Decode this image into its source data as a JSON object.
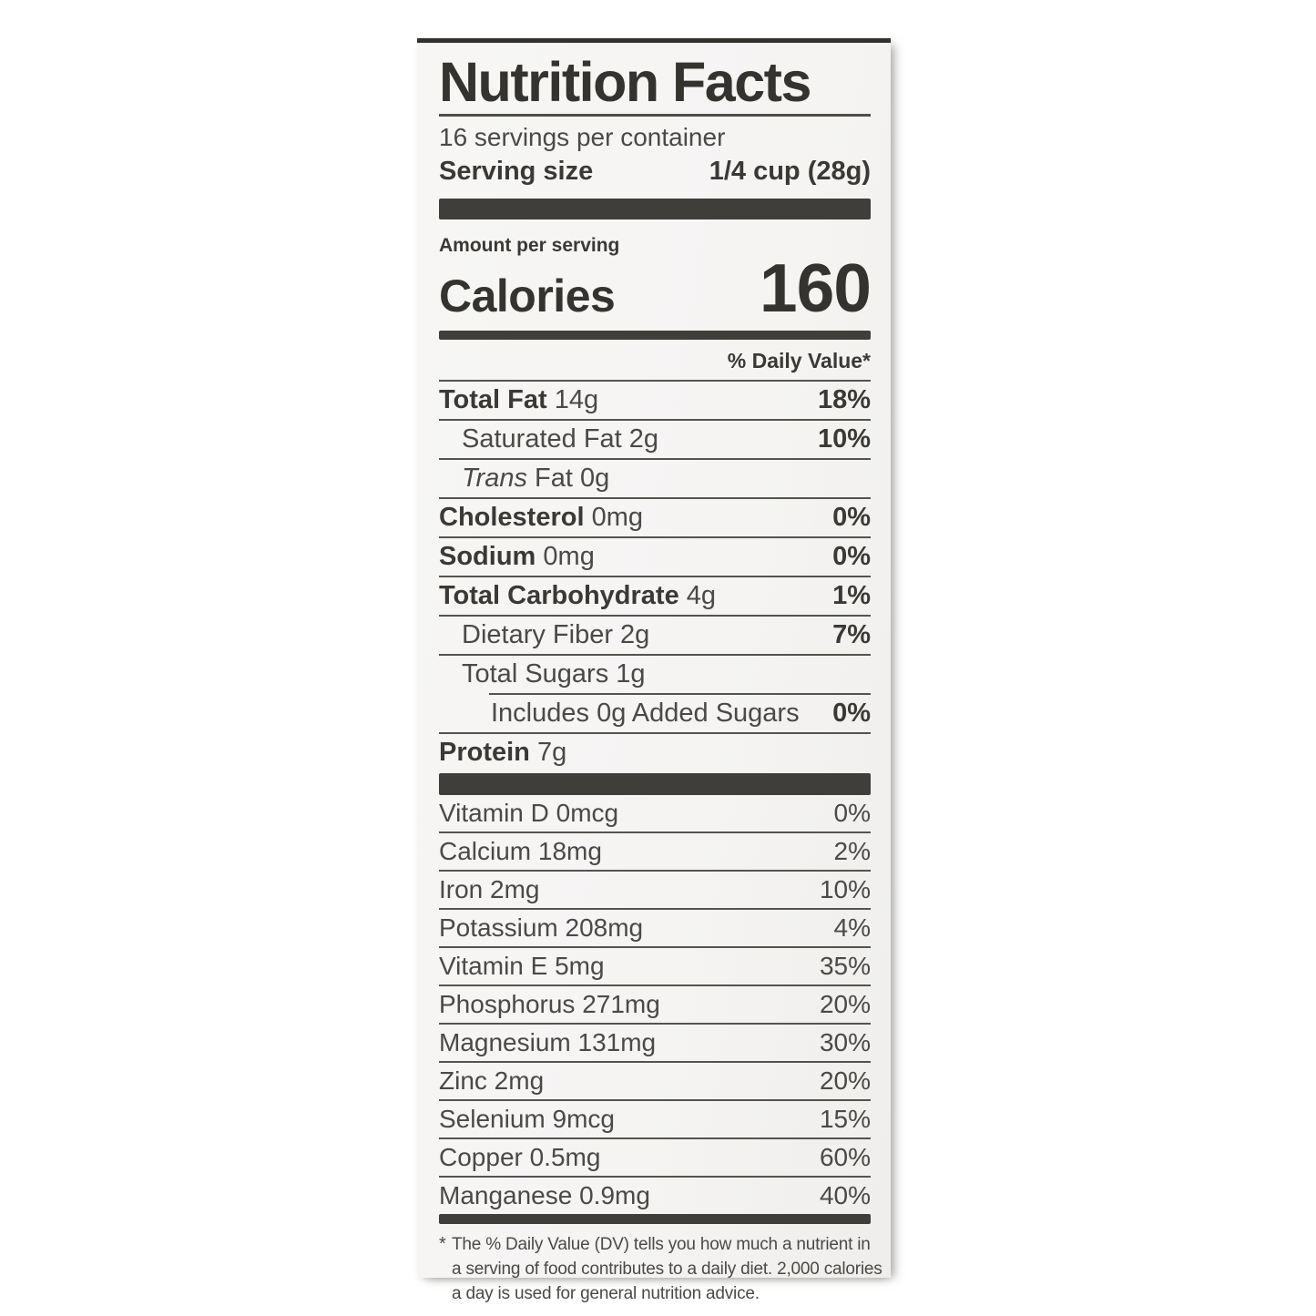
{
  "label": {
    "title": "Nutrition Facts",
    "servings_per_container": "16 servings per container",
    "serving_size_label": "Serving size",
    "serving_size_value": "1/4 cup (28g)",
    "amount_per_serving": "Amount per serving",
    "calories_label": "Calories",
    "calories_value": "160",
    "daily_value_header": "% Daily Value*"
  },
  "rows": [
    {
      "b": "Total Fat",
      "r": "14g",
      "dv": "18%"
    },
    {
      "r": "Saturated Fat 2g",
      "dv": "10%"
    },
    {
      "i": "Trans",
      "r": "Fat 0g"
    },
    {
      "b": "Cholesterol",
      "r": "0mg",
      "dv": "0%"
    },
    {
      "b": "Sodium",
      "r": "0mg",
      "dv": "0%"
    },
    {
      "b": "Total Carbohydrate",
      "r": "4g",
      "dv": "1%"
    },
    {
      "r": "Dietary Fiber 2g",
      "dv": "7%"
    },
    {
      "r": "Total Sugars 1g"
    },
    {
      "r": "Includes 0g Added Sugars",
      "dv": "0%"
    },
    {
      "b": "Protein",
      "r": "7g"
    }
  ],
  "vitamins": [
    {
      "n": "Vitamin D 0mcg",
      "dv": "0%"
    },
    {
      "n": "Calcium 18mg",
      "dv": "2%"
    },
    {
      "n": "Iron 2mg",
      "dv": "10%"
    },
    {
      "n": "Potassium 208mg",
      "dv": "4%"
    },
    {
      "n": "Vitamin E 5mg",
      "dv": "35%"
    },
    {
      "n": "Phosphorus 271mg",
      "dv": "20%"
    },
    {
      "n": "Magnesium 131mg",
      "dv": "30%"
    },
    {
      "n": "Zinc 2mg",
      "dv": "20%"
    },
    {
      "n": "Selenium 9mcg",
      "dv": "15%"
    },
    {
      "n": "Copper 0.5mg",
      "dv": "60%"
    },
    {
      "n": "Manganese 0.9mg",
      "dv": "40%"
    }
  ],
  "footnote_star": "*",
  "footnote": [
    "The % Daily Value (DV) tells you how much a nutrient in",
    "a serving of food contributes to a daily diet. 2,000 calories",
    "a day is used for general nutrition advice."
  ],
  "colors": {
    "label_background": "#f6f5f4",
    "ink_bold": "#3a3936",
    "ink_regular": "#4a4946",
    "separator_rule": "#55534f",
    "thick_bar": "#403e3b"
  }
}
